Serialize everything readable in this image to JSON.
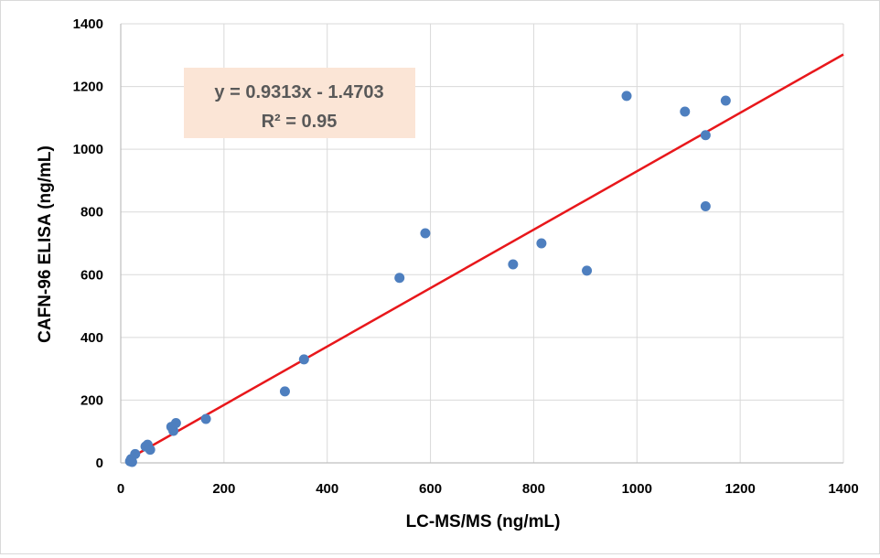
{
  "chart_data": {
    "type": "scatter",
    "title": "",
    "xlabel": "LC-MS/MS (ng/mL)",
    "ylabel": "CAFN-96 ELISA (ng/mL)",
    "xlim": [
      0,
      1400
    ],
    "ylim": [
      0,
      1400
    ],
    "xticks": [
      "0",
      "200",
      "400",
      "600",
      "800",
      "1000",
      "1200",
      "1400"
    ],
    "yticks": [
      "0",
      "200",
      "400",
      "600",
      "800",
      "1000",
      "1200",
      "1400"
    ],
    "grid": true,
    "legend": "none",
    "series": [
      {
        "color": "#4e7fbf",
        "points": [
          [
            18,
            5
          ],
          [
            20,
            12
          ],
          [
            22,
            3
          ],
          [
            28,
            28
          ],
          [
            48,
            52
          ],
          [
            52,
            58
          ],
          [
            57,
            42
          ],
          [
            98,
            115
          ],
          [
            102,
            102
          ],
          [
            107,
            127
          ],
          [
            165,
            140
          ],
          [
            318,
            228
          ],
          [
            355,
            330
          ],
          [
            540,
            590
          ],
          [
            590,
            732
          ],
          [
            760,
            633
          ],
          [
            815,
            700
          ],
          [
            903,
            613
          ],
          [
            980,
            1170
          ],
          [
            1093,
            1120
          ],
          [
            1133,
            1045
          ],
          [
            1133,
            818
          ],
          [
            1172,
            1155
          ]
        ]
      }
    ],
    "trendline": {
      "color": "#e8171b",
      "slope": 0.9313,
      "intercept": -1.4703,
      "x_range": [
        20,
        1400
      ],
      "equation_text": "y = 0.9313x - 1.4703",
      "r2_text": "R² = 0.95",
      "label_background": "#fbe5d6"
    },
    "grid_color": "#d9d9d9"
  }
}
